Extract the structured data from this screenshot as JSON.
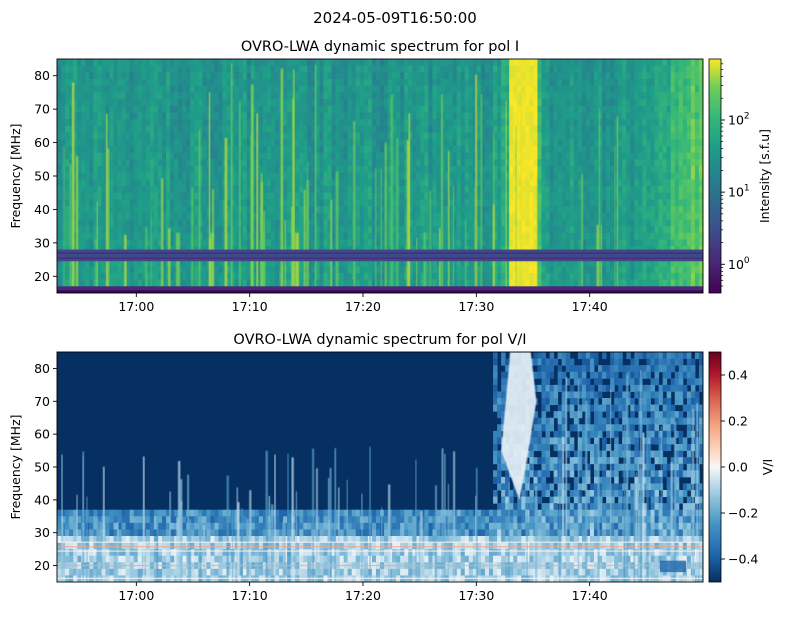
{
  "figure": {
    "suptitle": "2024-05-09T16:50:00"
  },
  "chart_data": [
    {
      "type": "heatmap",
      "title": "OVRO-LWA dynamic spectrum for pol I",
      "xlabel": "",
      "ylabel": "Frequency [MHz]",
      "x_range": [
        "16:53:00",
        "17:50:00"
      ],
      "ylim": [
        15,
        85
      ],
      "x_ticks": [
        "17:00",
        "17:10",
        "17:20",
        "17:30",
        "17:40"
      ],
      "x_tick_minutes": [
        0,
        10,
        20,
        30,
        40
      ],
      "x_start_minute": -7,
      "x_end_minute": 50,
      "y_ticks": [
        20,
        30,
        40,
        50,
        60,
        70,
        80
      ],
      "colormap": "viridis",
      "colorbar": {
        "label": "Intensity [s.f.u]",
        "scale": "log",
        "range": [
          0.4,
          700
        ],
        "ticks": [
          {
            "base": "10",
            "exp": "0",
            "value": 1
          },
          {
            "base": "10",
            "exp": "1",
            "value": 10
          },
          {
            "base": "10",
            "exp": "2",
            "value": 100
          }
        ]
      },
      "features": {
        "burst_minutes": [
          33,
          35.5
        ],
        "masked_bands_mhz": [
          [
            24.5,
            28
          ],
          [
            15,
            17
          ]
        ]
      }
    },
    {
      "type": "heatmap",
      "title": "OVRO-LWA dynamic spectrum for pol V/I",
      "xlabel": "",
      "ylabel": "Frequency [MHz]",
      "x_range": [
        "16:53:00",
        "17:50:00"
      ],
      "ylim": [
        15,
        85
      ],
      "x_ticks": [
        "17:00",
        "17:10",
        "17:20",
        "17:30",
        "17:40"
      ],
      "x_tick_minutes": [
        0,
        10,
        20,
        30,
        40
      ],
      "x_start_minute": -7,
      "x_end_minute": 50,
      "y_ticks": [
        20,
        30,
        40,
        50,
        60,
        70,
        80
      ],
      "colormap": "RdBu_r",
      "colorbar": {
        "label": "V/I",
        "scale": "linear",
        "range": [
          -0.5,
          0.5
        ],
        "ticks": [
          {
            "text": "0.4",
            "value": 0.4
          },
          {
            "text": "0.2",
            "value": 0.2
          },
          {
            "text": "0.0",
            "value": 0.0
          },
          {
            "text": "−0.2",
            "value": -0.2
          },
          {
            "text": "−0.4",
            "value": -0.4
          }
        ]
      }
    }
  ]
}
